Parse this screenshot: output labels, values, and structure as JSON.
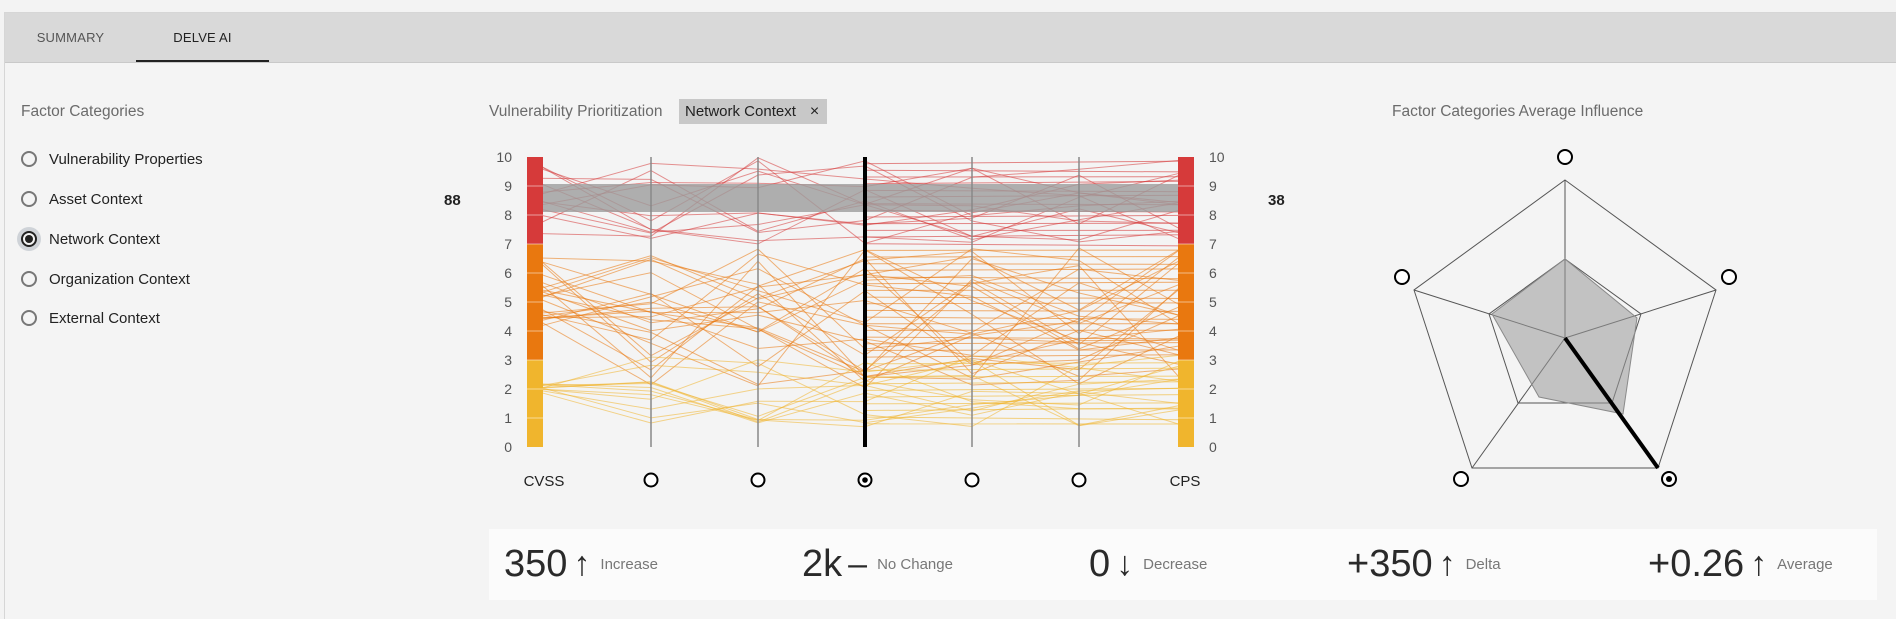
{
  "tabs": [
    {
      "label": "SUMMARY"
    },
    {
      "label": "DELVE AI"
    }
  ],
  "factor_panel": {
    "title": "Factor Categories",
    "options": [
      {
        "label": "Vulnerability Properties",
        "selected": false
      },
      {
        "label": "Asset Context",
        "selected": false
      },
      {
        "label": "Network Context",
        "selected": true
      },
      {
        "label": "Organization Context",
        "selected": false
      },
      {
        "label": "External Context",
        "selected": false
      }
    ]
  },
  "parallel": {
    "title": "Vulnerability Prioritization",
    "filter_chip": "Network Context",
    "chip_close": "×",
    "left_count": "88",
    "right_count": "38",
    "left_axis_label": "CVSS",
    "right_axis_label": "CPS",
    "ticks": [
      "0",
      "1",
      "2",
      "3",
      "4",
      "5",
      "6",
      "7",
      "8",
      "9",
      "10"
    ],
    "colors": {
      "high": "#d63a3a",
      "medium": "#e9780f",
      "low": "#f0b52d",
      "band": "#9c9c9c"
    }
  },
  "radar": {
    "title": "Factor Categories Average Influence"
  },
  "stats": [
    {
      "value": "350",
      "arrow": "↑",
      "label": "Increase"
    },
    {
      "value": "2k",
      "arrow": "–",
      "label": "No Change"
    },
    {
      "value": "0",
      "arrow": "↓",
      "label": "Decrease"
    },
    {
      "value": "+350",
      "arrow": "↑",
      "label": "Delta"
    },
    {
      "value": "+0.26",
      "arrow": "↑",
      "label": "Average"
    }
  ]
}
